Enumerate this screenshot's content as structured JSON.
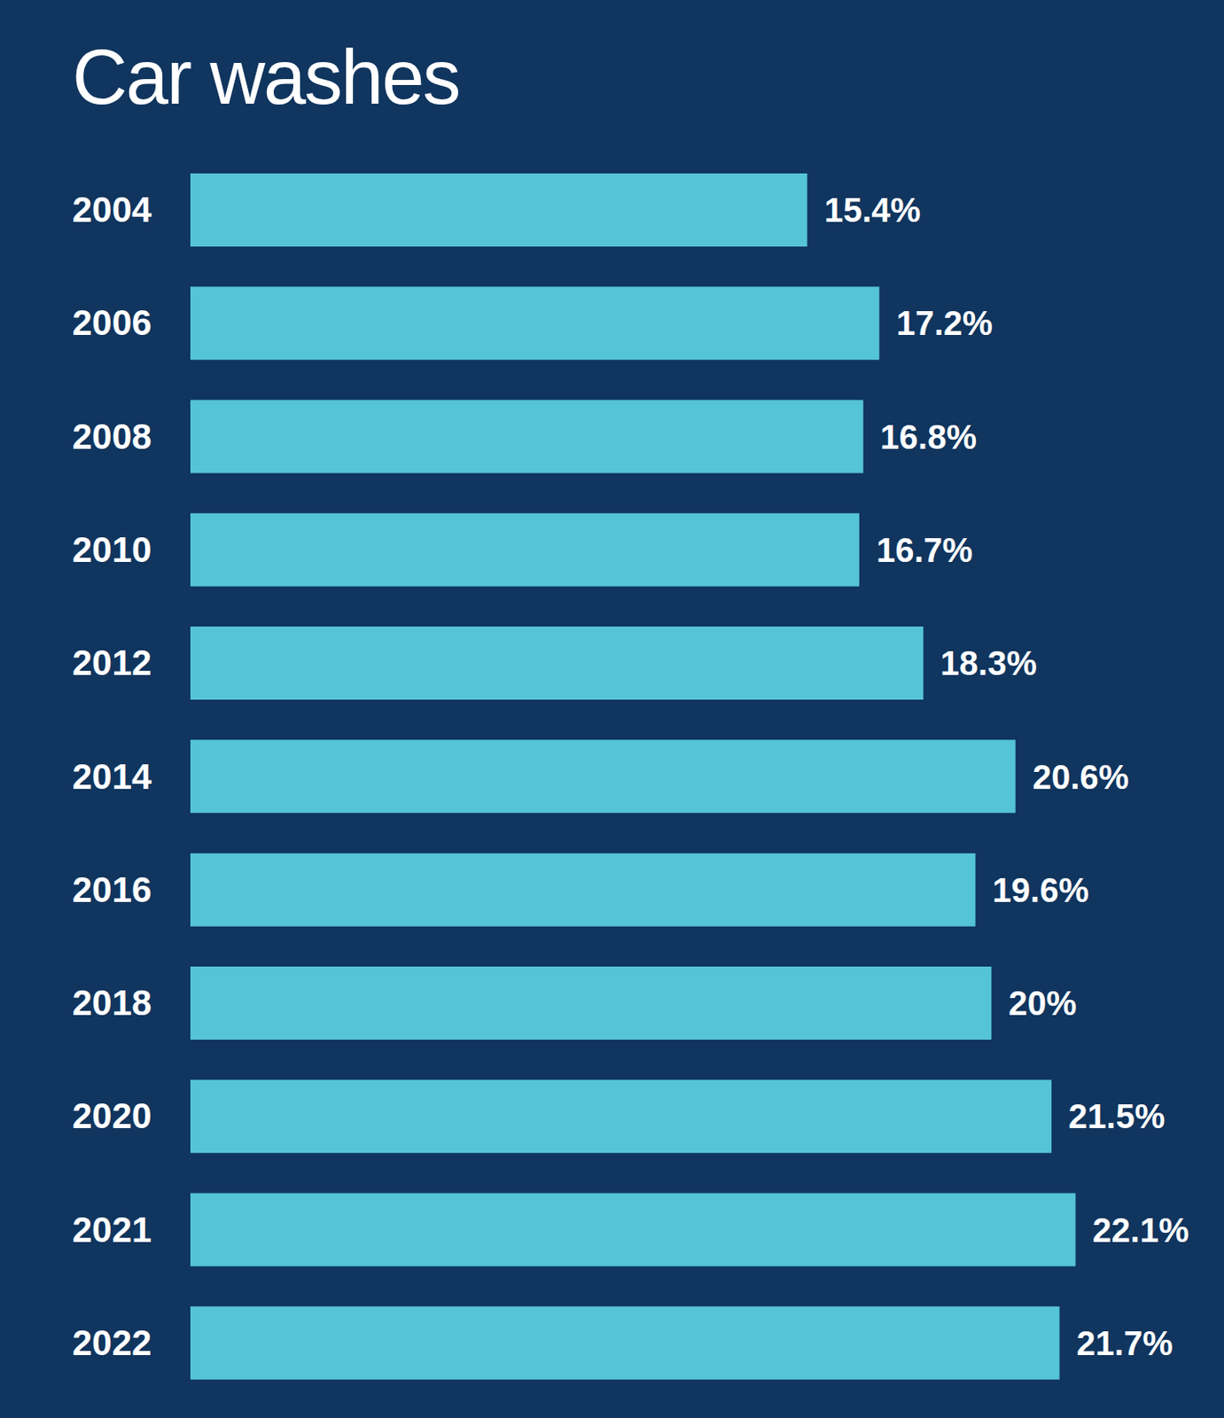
{
  "chart_data": {
    "type": "bar",
    "title": "Car washes",
    "orientation": "horizontal",
    "categories": [
      "2004",
      "2006",
      "2008",
      "2010",
      "2012",
      "2014",
      "2016",
      "2018",
      "2020",
      "2021",
      "2022"
    ],
    "values": [
      15.4,
      17.2,
      16.8,
      16.7,
      18.3,
      20.6,
      19.6,
      20,
      21.5,
      22.1,
      21.7
    ],
    "value_labels": [
      "15.4%",
      "17.2%",
      "16.8%",
      "16.7%",
      "18.3%",
      "20.6%",
      "19.6%",
      "20%",
      "21.5%",
      "22.1%",
      "21.7%"
    ],
    "color": "#55c4d7",
    "xlim": [
      0,
      25
    ],
    "xticks": [
      0,
      25
    ],
    "grid": false,
    "data_labels": true,
    "tick_labels": "y"
  }
}
